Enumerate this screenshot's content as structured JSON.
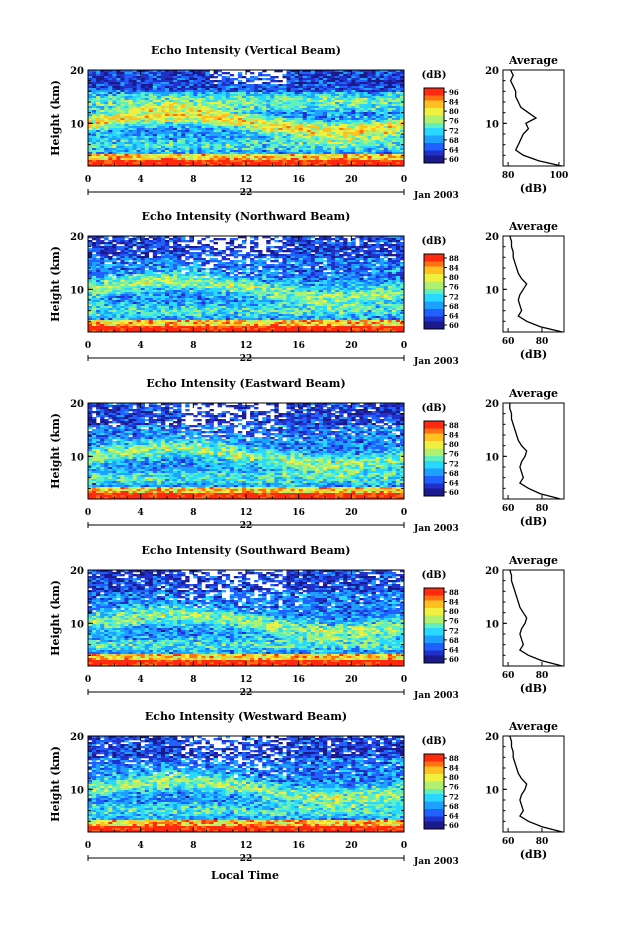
{
  "figure": {
    "xlabel_bottom": "Local Time",
    "colorbar_unit": "(dB)",
    "profile_title": "Average",
    "profile_xlabel": "(dB)",
    "date_label": "Jan 2003",
    "day_label": "22"
  },
  "chart_data": [
    {
      "type": "heatmap",
      "title": "Echo Intensity (Vertical Beam)",
      "ylabel": "Height (km)",
      "y_ticks": [
        "20",
        "10"
      ],
      "x_ticks": [
        "0",
        "4",
        "8",
        "12",
        "16",
        "20",
        "0"
      ],
      "xlim": [
        0,
        24
      ],
      "ylim": [
        2,
        20
      ],
      "colorbar_ticks": [
        "96",
        "84",
        "80",
        "76",
        "72",
        "68",
        "64",
        "60"
      ],
      "profile": {
        "title": "Average",
        "xlabel": "(dB)",
        "x_ticks": [
          "80",
          "100"
        ],
        "xlim": [
          78,
          102
        ],
        "y_ticks": [
          "20",
          "10"
        ],
        "height_km": [
          2,
          3,
          4,
          5,
          6,
          7,
          8,
          9,
          10,
          11,
          12,
          13,
          14,
          15,
          16,
          17,
          18,
          19,
          20
        ],
        "values_db": [
          101,
          92,
          86,
          83,
          84,
          85,
          86,
          88,
          87,
          91,
          88,
          85,
          84,
          83,
          83,
          82,
          81,
          82,
          81
        ]
      }
    },
    {
      "type": "heatmap",
      "title": "Echo Intensity (Northward Beam)",
      "ylabel": "Height (km)",
      "y_ticks": [
        "20",
        "10"
      ],
      "x_ticks": [
        "0",
        "4",
        "8",
        "12",
        "16",
        "20",
        "0"
      ],
      "xlim": [
        0,
        24
      ],
      "ylim": [
        2,
        20
      ],
      "colorbar_ticks": [
        "88",
        "84",
        "80",
        "76",
        "72",
        "68",
        "64",
        "60"
      ],
      "profile": {
        "title": "Average",
        "xlabel": "(dB)",
        "x_ticks": [
          "60",
          "80"
        ],
        "xlim": [
          57,
          93
        ],
        "y_ticks": [
          "20",
          "10"
        ],
        "height_km": [
          2,
          3,
          4,
          5,
          6,
          7,
          8,
          9,
          10,
          11,
          12,
          13,
          14,
          15,
          16,
          17,
          18,
          19,
          20
        ],
        "values_db": [
          92,
          79,
          71,
          66,
          68,
          67,
          66,
          67,
          69,
          71,
          68,
          66,
          65,
          64,
          63,
          63,
          62,
          62,
          61
        ]
      }
    },
    {
      "type": "heatmap",
      "title": "Echo Intensity (Eastward Beam)",
      "ylabel": "Height (km)",
      "y_ticks": [
        "20",
        "10"
      ],
      "x_ticks": [
        "0",
        "4",
        "8",
        "12",
        "16",
        "20",
        "0"
      ],
      "xlim": [
        0,
        24
      ],
      "ylim": [
        2,
        20
      ],
      "colorbar_ticks": [
        "88",
        "84",
        "80",
        "76",
        "72",
        "68",
        "64",
        "60"
      ],
      "profile": {
        "title": "Average",
        "xlabel": "(dB)",
        "x_ticks": [
          "60",
          "80"
        ],
        "xlim": [
          57,
          93
        ],
        "y_ticks": [
          "20",
          "10"
        ],
        "height_km": [
          2,
          3,
          4,
          5,
          6,
          7,
          8,
          9,
          10,
          11,
          12,
          13,
          14,
          15,
          16,
          17,
          18,
          19,
          20
        ],
        "values_db": [
          91,
          79,
          72,
          67,
          69,
          68,
          67,
          68,
          70,
          71,
          68,
          66,
          65,
          64,
          63,
          62,
          62,
          61,
          61
        ]
      }
    },
    {
      "type": "heatmap",
      "title": "Echo Intensity (Southward Beam)",
      "ylabel": "Height (km)",
      "y_ticks": [
        "20",
        "10"
      ],
      "x_ticks": [
        "0",
        "4",
        "8",
        "12",
        "16",
        "20",
        "0"
      ],
      "xlim": [
        0,
        24
      ],
      "ylim": [
        2,
        20
      ],
      "colorbar_ticks": [
        "88",
        "84",
        "80",
        "76",
        "72",
        "68",
        "64",
        "60"
      ],
      "profile": {
        "title": "Average",
        "xlabel": "(dB)",
        "x_ticks": [
          "60",
          "80"
        ],
        "xlim": [
          57,
          93
        ],
        "y_ticks": [
          "20",
          "10"
        ],
        "height_km": [
          2,
          3,
          4,
          5,
          6,
          7,
          8,
          9,
          10,
          11,
          12,
          13,
          14,
          15,
          16,
          17,
          18,
          19,
          20
        ],
        "values_db": [
          92,
          80,
          72,
          67,
          69,
          68,
          67,
          68,
          70,
          71,
          69,
          67,
          66,
          65,
          64,
          63,
          62,
          62,
          61
        ]
      }
    },
    {
      "type": "heatmap",
      "title": "Echo Intensity (Westward Beam)",
      "ylabel": "Height (km)",
      "y_ticks": [
        "20",
        "10"
      ],
      "x_ticks": [
        "0",
        "4",
        "8",
        "12",
        "16",
        "20",
        "0"
      ],
      "xlim": [
        0,
        24
      ],
      "ylim": [
        2,
        20
      ],
      "colorbar_ticks": [
        "88",
        "84",
        "80",
        "76",
        "72",
        "68",
        "64",
        "60"
      ],
      "profile": {
        "title": "Average",
        "xlabel": "(dB)",
        "x_ticks": [
          "60",
          "80"
        ],
        "xlim": [
          57,
          93
        ],
        "y_ticks": [
          "20",
          "10"
        ],
        "height_km": [
          2,
          3,
          4,
          5,
          6,
          7,
          8,
          9,
          10,
          11,
          12,
          13,
          14,
          15,
          16,
          17,
          18,
          19,
          20
        ],
        "values_db": [
          92,
          80,
          72,
          67,
          69,
          68,
          67,
          68,
          70,
          71,
          68,
          66,
          65,
          64,
          63,
          63,
          62,
          62,
          61
        ]
      }
    }
  ]
}
